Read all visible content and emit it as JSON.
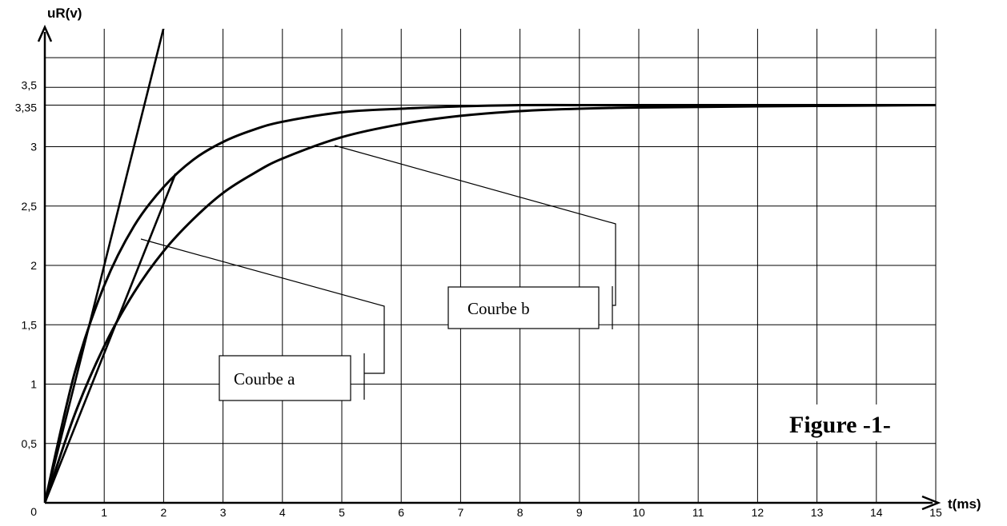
{
  "chart_data": {
    "type": "line",
    "xlabel": "t(ms)",
    "ylabel": "uR(v)",
    "xlim": [
      0,
      15
    ],
    "ylim": [
      0,
      4
    ],
    "grid": true,
    "x_ticks": [
      "1",
      "2",
      "3",
      "4",
      "5",
      "6",
      "7",
      "8",
      "9",
      "10",
      "11",
      "12",
      "13",
      "14",
      "15"
    ],
    "y_ticks": [
      {
        "value": 0.5,
        "label": "0,5"
      },
      {
        "value": 1,
        "label": "1"
      },
      {
        "value": 1.5,
        "label": "1,5"
      },
      {
        "value": 2,
        "label": "2"
      },
      {
        "value": 2.5,
        "label": "2,5"
      },
      {
        "value": 3,
        "label": "3"
      },
      {
        "value": 3.35,
        "label": "3,35"
      },
      {
        "value": 3.5,
        "label": "3,5"
      }
    ],
    "origin_label": "0",
    "asymptote": 3.35,
    "series": [
      {
        "name": "Courbe b",
        "x": [
          0,
          0.5,
          1,
          1.5,
          2,
          2.5,
          3,
          3.5,
          4,
          5,
          6,
          7,
          8,
          9,
          10,
          12,
          15
        ],
        "y": [
          0,
          1.09,
          1.83,
          2.33,
          2.66,
          2.89,
          3.04,
          3.14,
          3.21,
          3.29,
          3.32,
          3.34,
          3.35,
          3.35,
          3.35,
          3.35,
          3.35
        ]
      },
      {
        "name": "Courbe a",
        "x": [
          0,
          0.5,
          1,
          1.5,
          2,
          2.5,
          3,
          3.5,
          4,
          5,
          6,
          7,
          8,
          9,
          10,
          12,
          15
        ],
        "y": [
          0,
          0.74,
          1.32,
          1.77,
          2.12,
          2.39,
          2.61,
          2.77,
          2.9,
          3.08,
          3.19,
          3.26,
          3.3,
          3.32,
          3.33,
          3.34,
          3.35
        ]
      }
    ],
    "tangents": [
      {
        "through": [
          0,
          0
        ],
        "slope": 2.0
      },
      {
        "through": [
          0,
          0
        ],
        "slope": 1.26
      }
    ],
    "annotations": {
      "courbe_a": "Courbe a",
      "courbe_b": "Courbe b",
      "figure": "Figure -1-"
    }
  }
}
